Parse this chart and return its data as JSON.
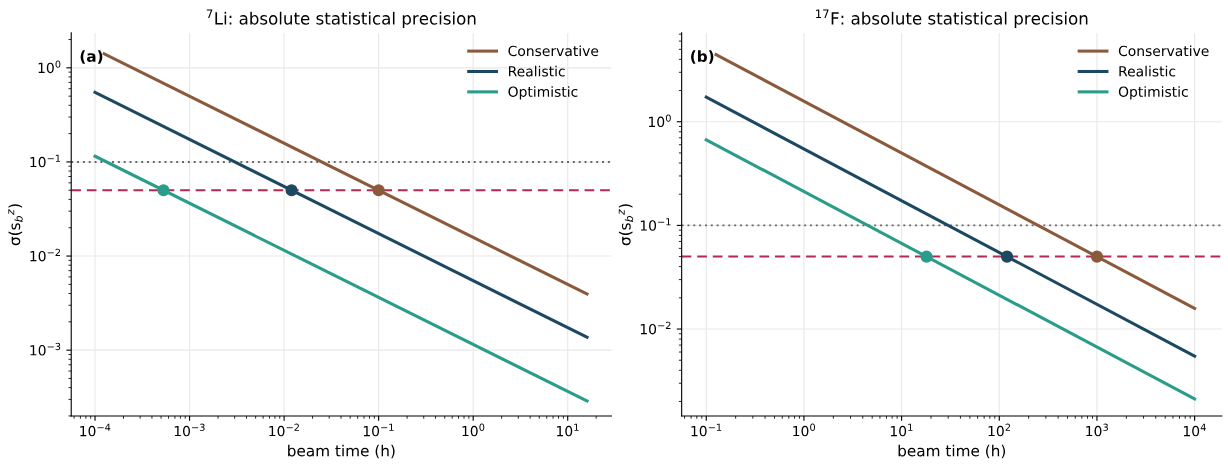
{
  "chart_data": [
    {
      "type": "line",
      "title": "$^{7}$Li: absolute statistical precision",
      "xlabel": "beam time (h)",
      "ylabel": "σ(s$_{b}$$^{z}$)",
      "log": "xy",
      "grid": true,
      "legend": "top right",
      "marker": "none",
      "line_style": "solid",
      "xlim": [
        5.6e-05,
        29
      ],
      "ylim": [
        0.0002,
        2.35
      ],
      "xticks": [
        {
          "value": 0.0001,
          "label": "10$^{−4}$"
        },
        {
          "value": 0.001,
          "label": "10$^{−3}$"
        },
        {
          "value": 0.01,
          "label": "10$^{−2}$"
        },
        {
          "value": 0.1,
          "label": "10$^{−1}$"
        },
        {
          "value": 1,
          "label": "10$^{0}$"
        },
        {
          "value": 10,
          "label": "10$^{1}$"
        }
      ],
      "yticks": [
        {
          "value": 0.001,
          "label": "10$^{−3}$"
        },
        {
          "value": 0.01,
          "label": "10$^{−2}$"
        },
        {
          "value": 0.1,
          "label": "10$^{−1}$"
        },
        {
          "value": 1,
          "label": "10$^{0}$"
        }
      ],
      "annotations": [
        "(a)"
      ],
      "ref_lines": [
        {
          "axis": "y",
          "value": 0.1,
          "color": "#666666",
          "line_style": "dotted"
        },
        {
          "axis": "y",
          "value": 0.05,
          "color": "#b5284f",
          "line_style": "dashed"
        }
      ],
      "series": [
        {
          "name": "Conservative",
          "color": "#8b5a3c",
          "x": [
            0.000125,
            16
          ],
          "values": [
            1.41,
            0.00395
          ]
        },
        {
          "name": "Realistic",
          "color": "#1d4862",
          "x": [
            0.0001,
            16
          ],
          "values": [
            0.548,
            0.00137
          ]
        },
        {
          "name": "Optimistic",
          "color": "#2a9d8a",
          "x": [
            0.0001,
            16
          ],
          "values": [
            0.115,
            0.000288
          ]
        },
        {
          "type": "scatter",
          "marker": "circle",
          "x": [
            0.00053,
            0.012,
            0.1
          ],
          "values": [
            0.05,
            0.05,
            0.05
          ],
          "colors": [
            "#2a9d8a",
            "#1d4862",
            "#8b5a3c"
          ]
        }
      ]
    },
    {
      "type": "line",
      "title": "$^{17}$F: absolute statistical precision",
      "xlabel": "beam time (h)",
      "ylabel": "σ(s$_{b}$$^{z}$)",
      "log": "xy",
      "grid": true,
      "legend": "top right",
      "marker": "none",
      "line_style": "solid",
      "xlim": [
        0.056,
        19000
      ],
      "ylim": [
        0.00145,
        7.2
      ],
      "xticks": [
        {
          "value": 0.1,
          "label": "10$^{−1}$"
        },
        {
          "value": 1,
          "label": "10$^{0}$"
        },
        {
          "value": 10,
          "label": "10$^{1}$"
        },
        {
          "value": 100,
          "label": "10$^{2}$"
        },
        {
          "value": 1000,
          "label": "10$^{3}$"
        },
        {
          "value": 10000,
          "label": "10$^{4}$"
        }
      ],
      "yticks": [
        {
          "value": 0.01,
          "label": "10$^{−2}$"
        },
        {
          "value": 0.1,
          "label": "10$^{−1}$"
        },
        {
          "value": 1,
          "label": "10$^{0}$"
        }
      ],
      "annotations": [
        "(b)"
      ],
      "ref_lines": [
        {
          "axis": "y",
          "value": 0.1,
          "color": "#666666",
          "line_style": "dotted"
        },
        {
          "axis": "y",
          "value": 0.05,
          "color": "#b5284f",
          "line_style": "dashed"
        }
      ],
      "series": [
        {
          "name": "Conservative",
          "color": "#8b5a3c",
          "x": [
            0.126,
            10000
          ],
          "values": [
            4.45,
            0.0158
          ]
        },
        {
          "name": "Realistic",
          "color": "#1d4862",
          "x": [
            0.1,
            10000
          ],
          "values": [
            1.73,
            0.00548
          ]
        },
        {
          "name": "Optimistic",
          "color": "#2a9d8a",
          "x": [
            0.1,
            10000
          ],
          "values": [
            0.67,
            0.00212
          ]
        },
        {
          "type": "scatter",
          "marker": "circle",
          "x": [
            18,
            120,
            1000
          ],
          "values": [
            0.05,
            0.05,
            0.05
          ],
          "colors": [
            "#2a9d8a",
            "#1d4862",
            "#8b5a3c"
          ]
        }
      ]
    }
  ]
}
